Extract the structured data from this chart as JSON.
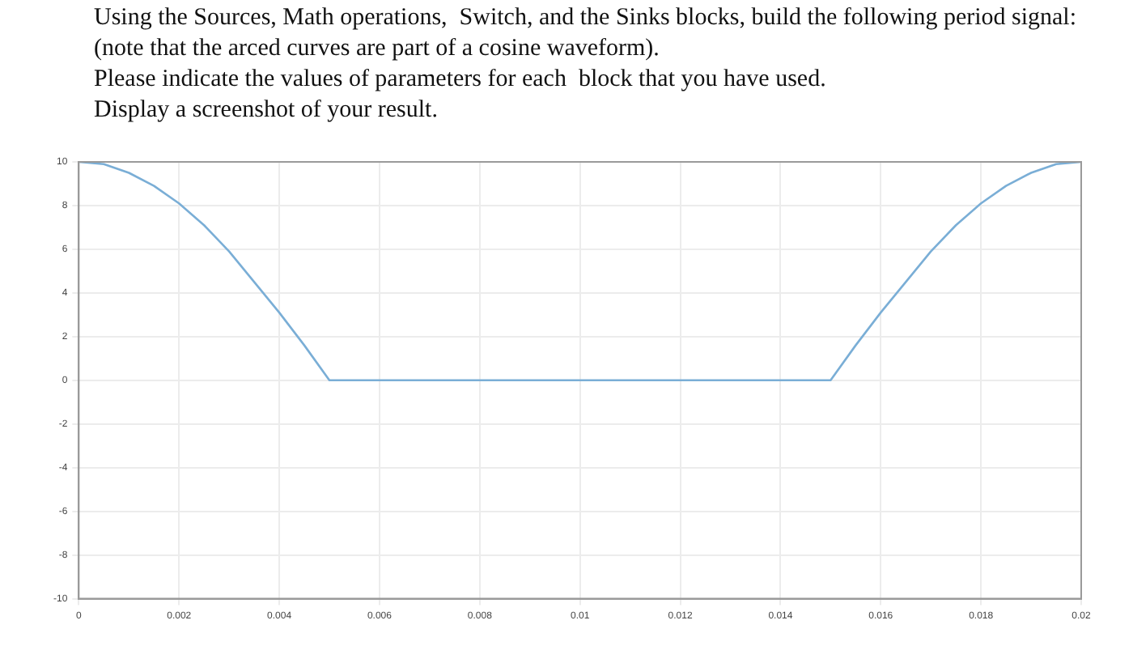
{
  "chart_data": {
    "type": "line",
    "title": "Using the Sources, Math operations,  Switch, and the Sinks blocks, build the following period signal: (note that the arced curves are part of a cosine waveform).\nPlease indicate the values of parameters for each  block that you have used.\nDisplay a screenshot of your result.",
    "x": [
      0,
      0.0005,
      0.001,
      0.0015,
      0.002,
      0.0025,
      0.003,
      0.0035,
      0.004,
      0.0045,
      0.005,
      0.015,
      0.0155,
      0.016,
      0.0165,
      0.017,
      0.0175,
      0.018,
      0.0185,
      0.019,
      0.0195,
      0.02
    ],
    "series": [
      {
        "color": "#7aaed6",
        "values": [
          10,
          9.9,
          9.5,
          8.9,
          8.1,
          7.1,
          5.9,
          4.5,
          3.1,
          1.6,
          0,
          0,
          1.6,
          3.1,
          4.5,
          5.9,
          7.1,
          8.1,
          8.9,
          9.5,
          9.9,
          10
        ]
      }
    ],
    "xlim": [
      0,
      0.02
    ],
    "xticks": [
      0,
      0.002,
      0.004,
      0.006,
      0.008,
      0.01,
      0.012,
      0.014,
      0.016,
      0.018,
      0.02
    ],
    "ylim": [
      -10,
      10
    ],
    "yticks": [
      -10,
      -8,
      -6,
      -4,
      -2,
      0,
      2,
      4,
      6,
      8,
      10
    ],
    "grid": true,
    "legend": false,
    "marker": "none",
    "line_style": "solid"
  }
}
